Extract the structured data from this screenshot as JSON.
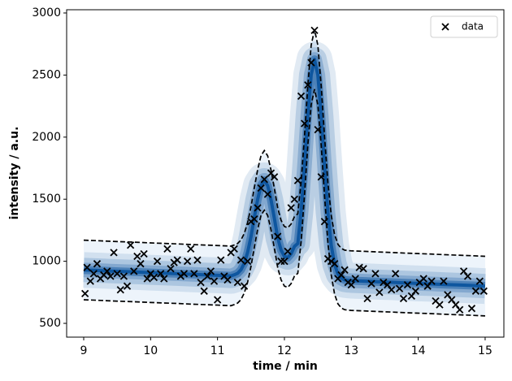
{
  "chart_data": {
    "type": "scatter",
    "x_label": "time / min",
    "y_label": "intensity / a.u.",
    "xlim": [
      8.745,
      15.28
    ],
    "ylim": [
      389,
      3026
    ],
    "xticks": [
      9,
      10,
      11,
      12,
      13,
      14,
      15
    ],
    "yticks": [
      500,
      1000,
      1500,
      2000,
      2500,
      3000
    ],
    "legend": "upper right",
    "series": [
      {
        "name": "data",
        "color": "#000000",
        "x": [
          9.02,
          9.05,
          9.1,
          9.15,
          9.2,
          9.25,
          9.3,
          9.35,
          9.4,
          9.45,
          9.5,
          9.55,
          9.6,
          9.65,
          9.7,
          9.75,
          9.8,
          9.85,
          9.9,
          9.95,
          10.0,
          10.05,
          10.1,
          10.15,
          10.2,
          10.25,
          10.3,
          10.35,
          10.4,
          10.45,
          10.5,
          10.55,
          10.6,
          10.65,
          10.7,
          10.75,
          10.8,
          10.85,
          10.9,
          10.95,
          11.0,
          11.05,
          11.1,
          11.15,
          11.2,
          11.25,
          11.3,
          11.35,
          11.4,
          11.45,
          11.5,
          11.55,
          11.6,
          11.65,
          11.7,
          11.75,
          11.8,
          11.85,
          11.9,
          11.95,
          12.0,
          12.05,
          12.1,
          12.15,
          12.2,
          12.25,
          12.3,
          12.35,
          12.4,
          12.45,
          12.5,
          12.55,
          12.6,
          12.65,
          12.7,
          12.75,
          12.8,
          12.85,
          12.9,
          12.95,
          13.0,
          13.06,
          13.12,
          13.18,
          13.24,
          13.3,
          13.36,
          13.42,
          13.48,
          13.54,
          13.6,
          13.66,
          13.72,
          13.78,
          13.84,
          13.9,
          13.96,
          14.02,
          14.08,
          14.14,
          14.2,
          14.26,
          14.32,
          14.38,
          14.44,
          14.5,
          14.56,
          14.62,
          14.68,
          14.74,
          14.8,
          14.86,
          14.92,
          14.98
        ],
        "values": [
          740,
          950,
          840,
          900,
          980,
          860,
          890,
          920,
          880,
          1070,
          900,
          770,
          880,
          800,
          1130,
          920,
          1040,
          980,
          1060,
          860,
          900,
          870,
          1000,
          900,
          860,
          1100,
          940,
          990,
          1010,
          880,
          900,
          1000,
          1100,
          900,
          1010,
          830,
          760,
          880,
          920,
          840,
          690,
          1010,
          880,
          850,
          1070,
          1100,
          830,
          1010,
          800,
          1000,
          1320,
          1340,
          1430,
          1590,
          1660,
          1540,
          1710,
          1680,
          1200,
          1000,
          1000,
          1080,
          1430,
          1500,
          1650,
          2330,
          2110,
          2420,
          2600,
          2860,
          2060,
          1680,
          1320,
          1020,
          1000,
          980,
          860,
          890,
          930,
          830,
          810,
          860,
          950,
          940,
          700,
          820,
          900,
          750,
          830,
          810,
          770,
          900,
          780,
          700,
          810,
          720,
          760,
          830,
          860,
          800,
          840,
          680,
          650,
          840,
          730,
          690,
          650,
          610,
          920,
          880,
          620,
          760,
          840,
          760
        ]
      }
    ],
    "curve_x": [
      9.0,
      9.2,
      9.4,
      9.6,
      9.8,
      10.0,
      10.2,
      10.4,
      10.6,
      10.8,
      11.0,
      11.2,
      11.25,
      11.3,
      11.35,
      11.4,
      11.45,
      11.5,
      11.55,
      11.6,
      11.65,
      11.7,
      11.75,
      11.8,
      11.85,
      11.9,
      11.95,
      12.0,
      12.05,
      12.1,
      12.15,
      12.2,
      12.25,
      12.3,
      12.35,
      12.4,
      12.45,
      12.5,
      12.55,
      12.6,
      12.65,
      12.7,
      12.75,
      12.8,
      12.85,
      12.9,
      12.95,
      13.0,
      13.2,
      13.4,
      13.6,
      13.8,
      14.0,
      14.2,
      14.4,
      14.6,
      14.8,
      15.0
    ],
    "curves": [
      {
        "role": "mean",
        "color": "#08519c",
        "values": [
          930,
          926,
          921,
          917,
          913,
          908,
          904,
          900,
          895,
          891,
          887,
          882,
          891,
          903,
          931,
          984,
          1072,
          1197,
          1352,
          1498,
          1611,
          1652,
          1609,
          1494,
          1345,
          1188,
          1090,
          1040,
          1030,
          1060,
          1120,
          1143,
          1403,
          1770,
          2175,
          2501,
          2626,
          2499,
          2171,
          1763,
          1394,
          1129,
          974,
          897,
          864,
          850,
          846,
          844,
          840,
          835,
          831,
          826,
          822,
          818,
          813,
          809,
          805,
          800
        ]
      },
      {
        "role": "upper",
        "color": "#000000",
        "dash": true,
        "values": [
          1170,
          1166,
          1161,
          1157,
          1153,
          1148,
          1144,
          1140,
          1135,
          1131,
          1127,
          1122,
          1131,
          1143,
          1171,
          1224,
          1312,
          1437,
          1592,
          1738,
          1851,
          1892,
          1849,
          1734,
          1585,
          1428,
          1330,
          1280,
          1270,
          1300,
          1360,
          1383,
          1643,
          2010,
          2415,
          2741,
          2866,
          2739,
          2411,
          2003,
          1634,
          1369,
          1214,
          1137,
          1104,
          1090,
          1086,
          1084,
          1080,
          1075,
          1071,
          1066,
          1062,
          1058,
          1053,
          1049,
          1045,
          1040
        ]
      },
      {
        "role": "lower",
        "color": "#000000",
        "dash": true,
        "values": [
          690,
          686,
          681,
          677,
          673,
          668,
          664,
          660,
          655,
          651,
          647,
          642,
          651,
          663,
          691,
          744,
          832,
          957,
          1112,
          1258,
          1371,
          1412,
          1369,
          1254,
          1105,
          948,
          850,
          800,
          790,
          820,
          880,
          903,
          1163,
          1530,
          1935,
          2261,
          2386,
          2259,
          1931,
          1523,
          1154,
          889,
          734,
          657,
          624,
          610,
          606,
          604,
          600,
          595,
          591,
          586,
          582,
          578,
          573,
          569,
          565,
          560
        ]
      }
    ]
  }
}
